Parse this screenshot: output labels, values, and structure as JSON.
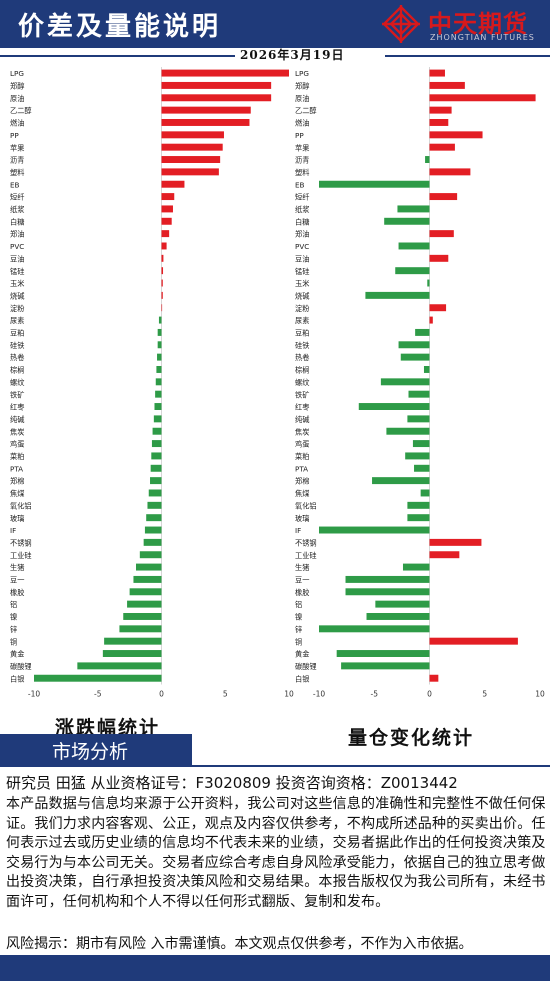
{
  "header": {
    "title": "价差及量能说明",
    "logo_text": "中天期货",
    "logo_sub": "ZHONGTIAN FUTURES",
    "date": "2026年3月19日"
  },
  "colors": {
    "navy": "#1f3a7a",
    "up": "#e31e24",
    "down": "#2e9b47",
    "brand_red": "#d7191c"
  },
  "chart_captions": {
    "left": "涨跌幅统计",
    "right": "量仓变化统计"
  },
  "chart_data": [
    {
      "type": "bar",
      "orientation": "horizontal",
      "categories": [
        "LPG",
        "郑醇",
        "原油",
        "乙二醇",
        "燃油",
        "PP",
        "苹果",
        "沥青",
        "塑料",
        "EB",
        "短纤",
        "纸浆",
        "白糖",
        "郑油",
        "PVC",
        "豆油",
        "锰硅",
        "玉米",
        "烧碱",
        "淀粉",
        "尿素",
        "豆粕",
        "硅铁",
        "热卷",
        "棕榈",
        "螺纹",
        "铁矿",
        "红枣",
        "纯碱",
        "焦炭",
        "鸡蛋",
        "菜粕",
        "PTA",
        "郑棉",
        "焦煤",
        "氧化铝",
        "玻璃",
        "IF",
        "不锈钢",
        "工业硅",
        "生猪",
        "豆一",
        "橡胶",
        "铝",
        "镍",
        "锌",
        "铜",
        "黄金",
        "碳酸锂",
        "白银"
      ],
      "values": [
        10.0,
        8.6,
        8.6,
        7.0,
        6.9,
        4.9,
        4.8,
        4.6,
        4.5,
        1.8,
        1.0,
        0.9,
        0.8,
        0.6,
        0.4,
        0.15,
        0.12,
        0.1,
        0.1,
        0.0,
        -0.2,
        -0.3,
        -0.3,
        -0.35,
        -0.4,
        -0.45,
        -0.5,
        -0.55,
        -0.6,
        -0.7,
        -0.75,
        -0.8,
        -0.85,
        -0.9,
        -1.0,
        -1.1,
        -1.2,
        -1.3,
        -1.4,
        -1.7,
        -2.0,
        -2.2,
        -2.5,
        -2.7,
        -3.0,
        -3.3,
        -4.5,
        -4.6,
        -6.6,
        -10.0
      ],
      "xlim": [
        -10,
        10
      ],
      "xticks": [
        "-10",
        "-5",
        "0",
        "5",
        "10"
      ]
    },
    {
      "type": "bar",
      "orientation": "horizontal",
      "categories": [
        "LPG",
        "郑醇",
        "原油",
        "乙二醇",
        "燃油",
        "PP",
        "苹果",
        "沥青",
        "塑料",
        "EB",
        "短纤",
        "纸浆",
        "白糖",
        "郑油",
        "PVC",
        "豆油",
        "锰硅",
        "玉米",
        "烧碱",
        "淀粉",
        "尿素",
        "豆粕",
        "硅铁",
        "热卷",
        "棕榈",
        "螺纹",
        "铁矿",
        "红枣",
        "纯碱",
        "焦炭",
        "鸡蛋",
        "菜粕",
        "PTA",
        "郑棉",
        "焦煤",
        "氧化铝",
        "玻璃",
        "IF",
        "不锈钢",
        "工业硅",
        "生猪",
        "豆一",
        "橡胶",
        "铝",
        "镍",
        "锌",
        "铜",
        "黄金",
        "碳酸锂",
        "白银"
      ],
      "values": [
        1.4,
        3.2,
        9.6,
        2.0,
        1.7,
        4.8,
        2.3,
        -0.4,
        3.7,
        -10.0,
        2.5,
        -2.9,
        -4.1,
        2.2,
        -2.8,
        1.7,
        -3.1,
        -0.2,
        -5.8,
        1.5,
        0.3,
        -1.3,
        -2.8,
        -2.6,
        -0.5,
        -4.4,
        -1.9,
        -6.4,
        -2.0,
        -3.9,
        -1.5,
        -2.2,
        -1.4,
        -5.2,
        -0.8,
        -2.0,
        -2.0,
        -10.0,
        4.7,
        2.7,
        -2.4,
        -7.6,
        -7.6,
        -4.9,
        -5.7,
        -10.0,
        8.0,
        -8.4,
        -8.0,
        0.8
      ],
      "xlim": [
        -10,
        10
      ],
      "xticks": [
        "-10",
        "-5",
        "0",
        "5",
        "10"
      ]
    }
  ],
  "market": {
    "label": "市场分析"
  },
  "analyst": {
    "line": "研究员 田猛   从业资格证号：F3020809 投资咨询资格：Z0013442"
  },
  "disclaimer": "本产品数据与信息均来源于公开资料，我公司对这些信息的准确性和完整性不做任何保证。我们力求内容客观、公正，观点及内容仅供参考，不构成所述品种的买卖出价。任何表示过去或历史业绩的信息均不代表未来的业绩，交易者据此作出的任何投资决策及交易行为与本公司无关。交易者应综合考虑自身风险承受能力，依据自己的独立思考做出投资决策，自行承担投资决策风险和交易结果。本报告版权仅为我公司所有，未经书面许可，任何机构和个人不得以任何形式翻版、复制和发布。",
  "risk": "风险揭示：期市有风险 入市需谨慎。本文观点仅供参考，不作为入市依据。"
}
